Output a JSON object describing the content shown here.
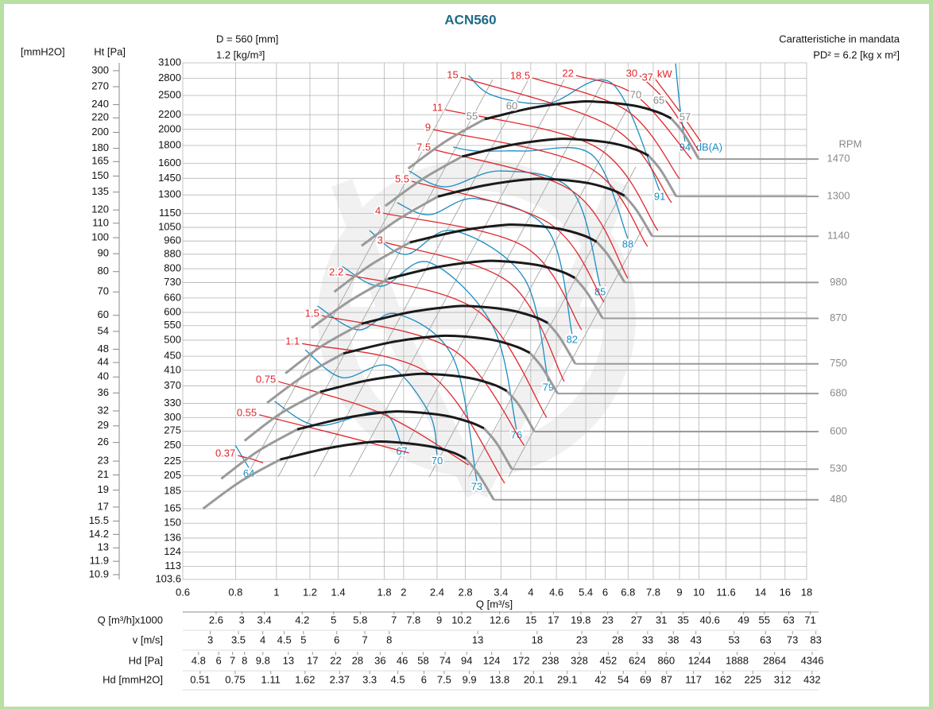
{
  "chart_data": {
    "type": "line",
    "title": "ACN560",
    "subtitle_left": [
      "D = 560 [mm]",
      "1.2 [kg/m³]"
    ],
    "subtitle_right": [
      "Caratteristiche in mandata",
      "PD² = 6.2 [kg x m²]"
    ],
    "x_label": "Q [m³/s]",
    "y_label": "Ht [Pa]",
    "y2_label": "[mmH2O]",
    "log_x": true,
    "log_y": true,
    "grid": true,
    "xlim": [
      0.6,
      18
    ],
    "xticks": [
      0.6,
      0.8,
      1,
      1.2,
      1.4,
      1.8,
      2,
      2.4,
      2.8,
      3.4,
      4,
      4.6,
      5.4,
      6,
      6.8,
      7.8,
      9,
      10,
      11.6,
      14,
      16,
      18
    ],
    "ylim": [
      103.6,
      3100
    ],
    "yticks": [
      3100,
      2800,
      2500,
      2200,
      2000,
      1800,
      1600,
      1450,
      1300,
      1150,
      1050,
      960,
      880,
      800,
      730,
      660,
      600,
      550,
      500,
      450,
      410,
      370,
      330,
      300,
      275,
      250,
      225,
      205,
      185,
      165,
      150,
      136,
      124,
      113,
      103.6
    ],
    "y2lim": [
      10.56,
      316
    ],
    "y2ticks": [
      300,
      270,
      240,
      220,
      200,
      180,
      165,
      150,
      135,
      120,
      110,
      100,
      90,
      80,
      70,
      60,
      54,
      48,
      44,
      40,
      36,
      32,
      29,
      26,
      23,
      21,
      19,
      17,
      15.5,
      14.2,
      13,
      11.9,
      10.9
    ],
    "rpm_label": "RPM",
    "main_color": "#1a1a1a",
    "lead_color": "#9a9a9a",
    "rpm_curves": [
      {
        "name": "1470",
        "lead": {
          "x": [
            2.05,
            2.51,
            3.11
          ],
          "y": [
            1546,
            1846,
            2139
          ]
        },
        "main": {
          "x": [
            3.11,
            4.0,
            5.0,
            5.71,
            7.0,
            8.0,
            8.6
          ],
          "y": [
            2139,
            2300,
            2390,
            2400,
            2340,
            2240,
            2150
          ]
        },
        "tail": {
          "x": [
            8.6,
            9.2,
            10
          ],
          "y": [
            2150,
            1950,
            1646
          ]
        }
      },
      {
        "name": "1300",
        "lead": {
          "x": [
            1.81,
            2.22,
            2.75
          ],
          "y": [
            1209,
            1444,
            1673
          ]
        },
        "main": {
          "x": [
            2.75,
            3.54,
            4.42,
            5.05,
            6.19,
            7.08,
            7.61
          ],
          "y": [
            1673,
            1799,
            1869,
            1877,
            1830,
            1752,
            1682
          ]
        },
        "tail": {
          "x": [
            7.61,
            8.14,
            8.84
          ],
          "y": [
            1682,
            1525,
            1287
          ]
        }
      },
      {
        "name": "1140",
        "lead": {
          "x": [
            1.59,
            1.95,
            2.41
          ],
          "y": [
            930,
            1110,
            1286
          ]
        },
        "main": {
          "x": [
            2.41,
            3.1,
            3.88,
            4.43,
            5.43,
            6.2,
            6.67
          ],
          "y": [
            1286,
            1383,
            1437,
            1443,
            1407,
            1347,
            1293
          ]
        },
        "tail": {
          "x": [
            6.67,
            7.13,
            7.76
          ],
          "y": [
            1293,
            1173,
            990
          ]
        }
      },
      {
        "name": "980",
        "lead": {
          "x": [
            1.37,
            1.67,
            2.07
          ],
          "y": [
            687,
            820,
            951
          ]
        },
        "main": {
          "x": [
            2.07,
            2.67,
            3.33,
            3.81,
            4.67,
            5.33,
            5.73
          ],
          "y": [
            951,
            1022,
            1062,
            1067,
            1040,
            996,
            955
          ]
        },
        "tail": {
          "x": [
            5.73,
            6.13,
            6.67
          ],
          "y": [
            955,
            867,
            731
          ]
        }
      },
      {
        "name": "870",
        "lead": {
          "x": [
            1.21,
            1.49,
            1.84
          ],
          "y": [
            542,
            647,
            749
          ]
        },
        "main": {
          "x": [
            1.84,
            2.37,
            2.96,
            3.38,
            4.14,
            4.73,
            5.09
          ],
          "y": [
            749,
            806,
            837,
            841,
            820,
            785,
            753
          ]
        },
        "tail": {
          "x": [
            5.09,
            5.44,
            5.92
          ],
          "y": [
            753,
            683,
            577
          ]
        }
      },
      {
        "name": "750",
        "lead": {
          "x": [
            1.05,
            1.28,
            1.59
          ],
          "y": [
            402,
            481,
            557
          ]
        },
        "main": {
          "x": [
            1.59,
            2.04,
            2.55,
            2.91,
            3.57,
            4.08,
            4.39
          ],
          "y": [
            557,
            599,
            622,
            625,
            609,
            583,
            560
          ]
        },
        "tail": {
          "x": [
            4.39,
            4.69,
            5.1
          ],
          "y": [
            560,
            508,
            428
          ]
        }
      },
      {
        "name": "680",
        "lead": {
          "x": [
            0.95,
            1.16,
            1.44
          ],
          "y": [
            331,
            395,
            458
          ]
        },
        "main": {
          "x": [
            1.44,
            1.85,
            2.31,
            2.64,
            3.24,
            3.7,
            3.98
          ],
          "y": [
            458,
            492,
            511,
            514,
            501,
            479,
            460
          ]
        },
        "tail": {
          "x": [
            3.98,
            4.26,
            4.63
          ],
          "y": [
            460,
            417,
            352
          ]
        }
      },
      {
        "name": "600",
        "lead": {
          "x": [
            0.84,
            1.02,
            1.27
          ],
          "y": [
            258,
            308,
            356
          ]
        },
        "main": {
          "x": [
            1.27,
            1.63,
            2.04,
            2.33,
            2.86,
            3.27,
            3.51
          ],
          "y": [
            356,
            383,
            398,
            400,
            390,
            373,
            358
          ]
        },
        "tail": {
          "x": [
            3.51,
            3.76,
            4.08
          ],
          "y": [
            358,
            325,
            274
          ]
        }
      },
      {
        "name": "530",
        "lead": {
          "x": [
            0.74,
            0.9,
            1.12
          ],
          "y": [
            201,
            240,
            278
          ]
        },
        "main": {
          "x": [
            1.12,
            1.44,
            1.8,
            2.06,
            2.52,
            2.88,
            3.1
          ],
          "y": [
            278,
            299,
            311,
            312,
            304,
            291,
            280
          ]
        },
        "tail": {
          "x": [
            3.1,
            3.32,
            3.61
          ],
          "y": [
            280,
            254,
            214
          ]
        }
      },
      {
        "name": "480",
        "lead": {
          "x": [
            0.67,
            0.82,
            1.02
          ],
          "y": [
            165,
            197,
            228
          ]
        },
        "main": {
          "x": [
            1.02,
            1.31,
            1.63,
            1.86,
            2.29,
            2.61,
            2.81
          ],
          "y": [
            228,
            245,
            255,
            256,
            249,
            239,
            229
          ]
        },
        "tail": {
          "x": [
            2.81,
            3.0,
            3.27
          ],
          "y": [
            229,
            208,
            175
          ]
        }
      }
    ],
    "power_unit": "kW",
    "power_color": "#e1262b",
    "power_curves": [
      {
        "name": "0.37",
        "x": [
          0.81,
          0.87,
          0.93
        ],
        "y": [
          234,
          229,
          223
        ]
      },
      {
        "name": "0.55",
        "x": [
          0.91,
          1.43,
          2.06
        ],
        "y": [
          306,
          267,
          238
        ]
      },
      {
        "name": "0.75",
        "x": [
          1.01,
          1.77,
          2.85
        ],
        "y": [
          381,
          309,
          220
        ]
      },
      {
        "name": "1.1",
        "x": [
          1.15,
          2.3,
          3.47
        ],
        "y": [
          489,
          401,
          195
        ]
      },
      {
        "name": "1.5",
        "x": [
          1.28,
          2.62,
          3.86
        ],
        "y": [
          588,
          469,
          250
        ]
      },
      {
        "name": "2.2",
        "x": [
          1.46,
          2.98,
          4.36
        ],
        "y": [
          771,
          609,
          301
        ]
      },
      {
        "name": "3",
        "x": [
          1.81,
          3.55,
          4.8
        ],
        "y": [
          951,
          732,
          381
        ]
      },
      {
        "name": "4",
        "x": [
          1.79,
          3.86,
          5.28
        ],
        "y": [
          1153,
          926,
          535
        ]
      },
      {
        "name": "5.5",
        "x": [
          2.09,
          4.4,
          5.96
        ],
        "y": [
          1422,
          1083,
          642
        ]
      },
      {
        "name": "7.5",
        "x": [
          2.35,
          5.01,
          6.79
        ],
        "y": [
          1753,
          1335,
          751
        ]
      },
      {
        "name": "9",
        "x": [
          2.35,
          5.47,
          7.56
        ],
        "y": [
          1998,
          1562,
          926
        ]
      },
      {
        "name": "11",
        "x": [
          2.51,
          5.71,
          8.0
        ],
        "y": [
          2277,
          1781,
          1028
        ]
      },
      {
        "name": "15",
        "x": [
          2.73,
          6.23,
          8.62
        ],
        "y": [
          2821,
          2030,
          1235
        ]
      },
      {
        "name": "18.5",
        "x": [
          4.04,
          6.79,
          9.0
        ],
        "y": [
          2807,
          2253,
          1445
        ]
      },
      {
        "name": "22",
        "x": [
          5.12,
          7.09,
          9.6
        ],
        "y": [
          2851,
          2502,
          1646
        ]
      },
      {
        "name": "30",
        "x": [
          7.25,
          8.44,
          10.0
        ],
        "y": [
          2851,
          2375,
          1735
        ]
      },
      {
        "name": "37",
        "x": [
          7.9,
          9.0,
          10.1
        ],
        "y": [
          2777,
          2253,
          1847
        ]
      }
    ],
    "noise_unit": "dB(A)",
    "noise_color": "#1b8cc2",
    "noise_curves": [
      {
        "name": "64",
        "x": [
          0.8,
          0.83,
          0.86
        ],
        "y": [
          250,
          232,
          216
        ]
      },
      {
        "name": "67",
        "x": [
          0.99,
          1.25,
          1.77,
          1.98
        ],
        "y": [
          334,
          285,
          312,
          250
        ]
      },
      {
        "name": "70",
        "x": [
          1.17,
          1.43,
          1.85,
          2.3,
          2.4
        ],
        "y": [
          469,
          391,
          422,
          309,
          235
        ]
      },
      {
        "name": "73",
        "x": [
          1.25,
          1.56,
          1.93,
          2.62,
          2.98
        ],
        "y": [
          626,
          535,
          594,
          445,
          198
        ]
      },
      {
        "name": "76",
        "x": [
          1.43,
          1.77,
          2.3,
          3.25,
          3.7
        ],
        "y": [
          812,
          713,
          834,
          549,
          278
        ]
      },
      {
        "name": "79",
        "x": [
          1.66,
          2.02,
          2.62,
          3.86,
          4.4
        ],
        "y": [
          1028,
          879,
          1028,
          751,
          381
        ]
      },
      {
        "name": "82",
        "x": [
          1.93,
          2.3,
          2.98,
          4.4,
          5.01
        ],
        "y": [
          1235,
          1141,
          1268,
          1028,
          521
        ]
      },
      {
        "name": "85",
        "x": [
          2.06,
          2.51,
          3.4,
          5.01,
          5.84
        ],
        "y": [
          1522,
          1371,
          1522,
          1335,
          713
        ]
      },
      {
        "name": "88",
        "x": [
          2.62,
          2.98,
          3.86,
          5.59,
          6.79
        ],
        "y": [
          1781,
          1735,
          1735,
          1690,
          976
        ]
      },
      {
        "name": "91",
        "x": [
          2.85,
          3.25,
          4.4,
          6.23,
          8.08
        ],
        "y": [
          2851,
          2502,
          2375,
          2706,
          1335
        ]
      },
      {
        "name": "94",
        "x": [
          8.81,
          9.0,
          9.27
        ],
        "y": [
          3084,
          2375,
          1847
        ]
      }
    ],
    "efficiency_labels": [
      "55",
      "60",
      "70",
      "65",
      "57"
    ],
    "scales": [
      {
        "label": "Q [m³/h]x1000",
        "xlim": [
          2.16,
          69.6
        ],
        "ticks": [
          2.6,
          3,
          3.4,
          4.2,
          5,
          5.8,
          7,
          7.8,
          9,
          10.2,
          12.6,
          15,
          17,
          19.8,
          23,
          27,
          31,
          35,
          40.6,
          49,
          55,
          63,
          71
        ]
      },
      {
        "label": "v [m/s]",
        "xlim": [
          2.58,
          78.9
        ],
        "ticks": [
          3,
          3.5,
          4,
          4.5,
          5,
          6,
          7,
          8,
          13,
          18,
          23,
          28,
          33,
          38,
          43,
          53,
          63,
          73,
          83
        ]
      },
      {
        "label": "Hd [Pa]",
        "xlim": [
          4.03,
          4084
        ],
        "ticks": [
          4.8,
          6,
          7,
          8,
          9.8,
          13,
          17,
          22,
          28,
          36,
          46,
          58,
          74,
          94,
          124,
          172,
          238,
          328,
          452,
          624,
          860,
          1244,
          1888,
          2864,
          4346
        ]
      },
      {
        "label": "Hd [mmH2O]",
        "xlim": [
          0.421,
          407
        ],
        "ticks": [
          0.51,
          0.75,
          1.11,
          1.62,
          2.37,
          3.3,
          4.5,
          6,
          7.5,
          9.9,
          13.8,
          20.1,
          29.1,
          42,
          54,
          69,
          87,
          117,
          162,
          225,
          312,
          432
        ]
      }
    ]
  }
}
